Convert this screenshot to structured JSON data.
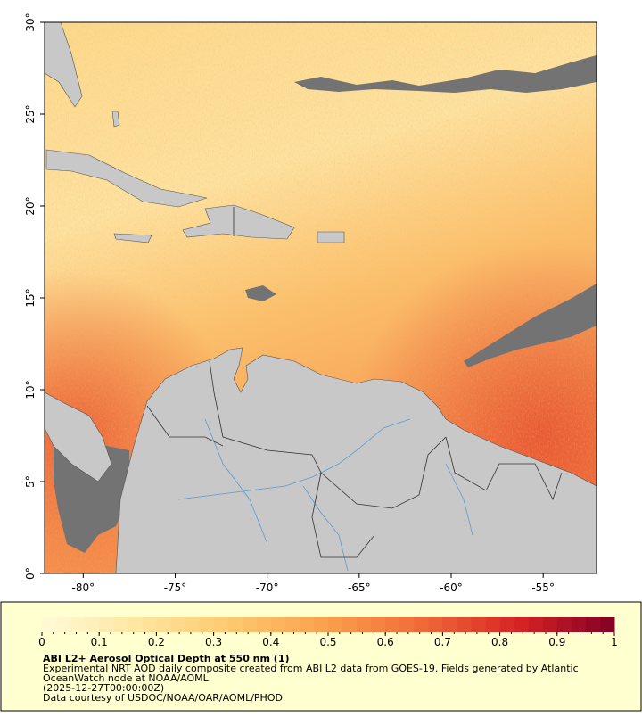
{
  "map": {
    "xlim": [
      -82.1,
      -52.1
    ],
    "ylim": [
      0,
      30
    ],
    "xticks": [
      {
        "value": -80,
        "label": "-80°"
      },
      {
        "value": -75,
        "label": "-75°"
      },
      {
        "value": -70,
        "label": "-70°"
      },
      {
        "value": -65,
        "label": "-65°"
      },
      {
        "value": -60,
        "label": "-60°"
      },
      {
        "value": -55,
        "label": "-55°"
      }
    ],
    "yticks": [
      {
        "value": 0,
        "label": "0°"
      },
      {
        "value": 5,
        "label": "5°"
      },
      {
        "value": 10,
        "label": "10°"
      },
      {
        "value": 15,
        "label": "15°"
      },
      {
        "value": 20,
        "label": "20°"
      },
      {
        "value": 25,
        "label": "25°"
      },
      {
        "value": 30,
        "label": "30°"
      }
    ]
  },
  "colorbar": {
    "range": [
      0,
      1
    ],
    "ticks": [
      0,
      0.1,
      0.2,
      0.3,
      0.4,
      0.5,
      0.6,
      0.7,
      0.8,
      0.9,
      1
    ]
  },
  "legend": {
    "title": "ABI L2+ Aerosol Optical Depth at 550 nm (1)",
    "lines": [
      "Experimental NRT AOD daily composite created from ABI L2 data from GOES-19. Fields generated by Atlantic",
      "OceanWatch node at NOAA/AOML",
      "(2025-12-27T00:00:00Z)",
      "Data courtesy of USDOC/NOAA/OAR/AOML/PHOD"
    ]
  }
}
